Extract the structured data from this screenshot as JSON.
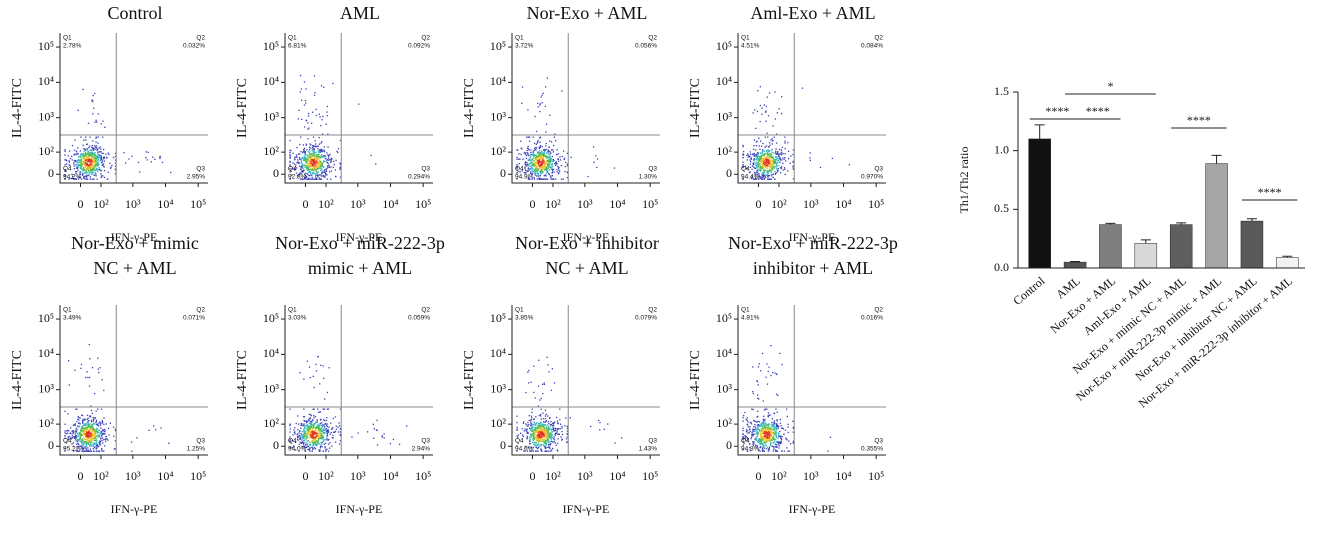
{
  "chart_data": [
    {
      "type": "flow",
      "title": [
        "Control"
      ],
      "xlabel": "IFN-γ-PE",
      "ylabel": "IL-4-FITC",
      "scale": "asinh",
      "xlim": [
        -100,
        200000
      ],
      "ylim": [
        -30,
        250000
      ],
      "xticks": [
        0,
        {
          "value": 100,
          "label": "10²"
        },
        {
          "value": 1000,
          "label": "10³"
        },
        {
          "value": 10000,
          "label": "10⁴"
        },
        {
          "value": 100000,
          "label": "10⁵"
        }
      ],
      "yticks": [
        0,
        {
          "value": 100,
          "label": "10²"
        },
        {
          "value": 1000,
          "label": "10³"
        },
        {
          "value": 10000,
          "label": "10⁴"
        },
        {
          "value": 100000,
          "label": "10⁵"
        }
      ],
      "quadrants": [
        "Q1",
        "Q2",
        "Q3",
        "Q4"
      ],
      "values": [
        2.78,
        0.032,
        2.95,
        94.2
      ],
      "value_labels": [
        "2.78%",
        "0.032%",
        "2.95%",
        "94.2%"
      ]
    },
    {
      "type": "flow",
      "title": [
        "AML"
      ],
      "xlabel": "IFN-γ-PE",
      "ylabel": "IL-4-FITC",
      "scale": "asinh",
      "xlim": [
        -100,
        200000
      ],
      "ylim": [
        -30,
        250000
      ],
      "xticks": [
        0,
        {
          "value": 100,
          "label": "10²"
        },
        {
          "value": 1000,
          "label": "10³"
        },
        {
          "value": 10000,
          "label": "10⁴"
        },
        {
          "value": 100000,
          "label": "10⁵"
        }
      ],
      "yticks": [
        0,
        {
          "value": 100,
          "label": "10²"
        },
        {
          "value": 1000,
          "label": "10³"
        },
        {
          "value": 10000,
          "label": "10⁴"
        },
        {
          "value": 100000,
          "label": "10⁵"
        }
      ],
      "quadrants": [
        "Q1",
        "Q2",
        "Q3",
        "Q4"
      ],
      "values": [
        6.81,
        0.092,
        0.294,
        92.8
      ],
      "value_labels": [
        "6.81%",
        "0.092%",
        "0.294%",
        "92.8%"
      ]
    },
    {
      "type": "flow",
      "title": [
        "Nor-Exo + AML"
      ],
      "xlabel": "IFN-γ-PE",
      "ylabel": "IL-4-FITC",
      "scale": "asinh",
      "xlim": [
        -100,
        200000
      ],
      "ylim": [
        -30,
        250000
      ],
      "xticks": [
        0,
        {
          "value": 100,
          "label": "10²"
        },
        {
          "value": 1000,
          "label": "10³"
        },
        {
          "value": 10000,
          "label": "10⁴"
        },
        {
          "value": 100000,
          "label": "10⁵"
        }
      ],
      "yticks": [
        0,
        {
          "value": 100,
          "label": "10²"
        },
        {
          "value": 1000,
          "label": "10³"
        },
        {
          "value": 10000,
          "label": "10⁴"
        },
        {
          "value": 100000,
          "label": "10⁵"
        }
      ],
      "quadrants": [
        "Q1",
        "Q2",
        "Q3",
        "Q4"
      ],
      "values": [
        3.72,
        0.056,
        1.3,
        94.9
      ],
      "value_labels": [
        "3.72%",
        "0.056%",
        "1.30%",
        "94.9%"
      ]
    },
    {
      "type": "flow",
      "title": [
        "Aml-Exo + AML"
      ],
      "xlabel": "IFN-γ-PE",
      "ylabel": "IL-4-FITC",
      "scale": "asinh",
      "xlim": [
        -100,
        200000
      ],
      "ylim": [
        -30,
        250000
      ],
      "xticks": [
        0,
        {
          "value": 100,
          "label": "10²"
        },
        {
          "value": 1000,
          "label": "10³"
        },
        {
          "value": 10000,
          "label": "10⁴"
        },
        {
          "value": 100000,
          "label": "10⁵"
        }
      ],
      "yticks": [
        0,
        {
          "value": 100,
          "label": "10²"
        },
        {
          "value": 1000,
          "label": "10³"
        },
        {
          "value": 10000,
          "label": "10⁴"
        },
        {
          "value": 100000,
          "label": "10⁵"
        }
      ],
      "quadrants": [
        "Q1",
        "Q2",
        "Q3",
        "Q4"
      ],
      "values": [
        4.51,
        0.084,
        0.97,
        94.4
      ],
      "value_labels": [
        "4.51%",
        "0.084%",
        "0.970%",
        "94.4%"
      ]
    },
    {
      "type": "flow",
      "title": [
        "Nor-Exo + mimic",
        "NC + AML"
      ],
      "xlabel": "IFN-γ-PE",
      "ylabel": "IL-4-FITC",
      "scale": "asinh",
      "xlim": [
        -100,
        200000
      ],
      "ylim": [
        -30,
        250000
      ],
      "xticks": [
        0,
        {
          "value": 100,
          "label": "10²"
        },
        {
          "value": 1000,
          "label": "10³"
        },
        {
          "value": 10000,
          "label": "10⁴"
        },
        {
          "value": 100000,
          "label": "10⁵"
        }
      ],
      "yticks": [
        0,
        {
          "value": 100,
          "label": "10²"
        },
        {
          "value": 1000,
          "label": "10³"
        },
        {
          "value": 10000,
          "label": "10⁴"
        },
        {
          "value": 100000,
          "label": "10⁵"
        }
      ],
      "quadrants": [
        "Q1",
        "Q2",
        "Q3",
        "Q4"
      ],
      "values": [
        3.49,
        0.071,
        1.25,
        95.2
      ],
      "value_labels": [
        "3.49%",
        "0.071%",
        "1.25%",
        "95.2%"
      ]
    },
    {
      "type": "flow",
      "title": [
        "Nor-Exo + miR-222-3p",
        "mimic + AML"
      ],
      "xlabel": "IFN-γ-PE",
      "ylabel": "IL-4-FITC",
      "scale": "asinh",
      "xlim": [
        -100,
        200000
      ],
      "ylim": [
        -30,
        250000
      ],
      "xticks": [
        0,
        {
          "value": 100,
          "label": "10²"
        },
        {
          "value": 1000,
          "label": "10³"
        },
        {
          "value": 10000,
          "label": "10⁴"
        },
        {
          "value": 100000,
          "label": "10⁵"
        }
      ],
      "yticks": [
        0,
        {
          "value": 100,
          "label": "10²"
        },
        {
          "value": 1000,
          "label": "10³"
        },
        {
          "value": 10000,
          "label": "10⁴"
        },
        {
          "value": 100000,
          "label": "10⁵"
        }
      ],
      "quadrants": [
        "Q1",
        "Q2",
        "Q3",
        "Q4"
      ],
      "values": [
        3.03,
        0.059,
        2.94,
        94.0
      ],
      "value_labels": [
        "3.03%",
        "0.059%",
        "2.94%",
        "94.0%"
      ]
    },
    {
      "type": "flow",
      "title": [
        "Nor-Exo + inhibitor",
        "NC + AML"
      ],
      "xlabel": "IFN-γ-PE",
      "ylabel": "IL-4-FITC",
      "scale": "asinh",
      "xlim": [
        -100,
        200000
      ],
      "ylim": [
        -30,
        250000
      ],
      "xticks": [
        0,
        {
          "value": 100,
          "label": "10²"
        },
        {
          "value": 1000,
          "label": "10³"
        },
        {
          "value": 10000,
          "label": "10⁴"
        },
        {
          "value": 100000,
          "label": "10⁵"
        }
      ],
      "yticks": [
        0,
        {
          "value": 100,
          "label": "10²"
        },
        {
          "value": 1000,
          "label": "10³"
        },
        {
          "value": 10000,
          "label": "10⁴"
        },
        {
          "value": 100000,
          "label": "10⁵"
        }
      ],
      "quadrants": [
        "Q1",
        "Q2",
        "Q3",
        "Q4"
      ],
      "values": [
        3.85,
        0.079,
        1.43,
        94.6
      ],
      "value_labels": [
        "3.85%",
        "0.079%",
        "1.43%",
        "94.6%"
      ]
    },
    {
      "type": "flow",
      "title": [
        "Nor-Exo + miR-222-3p",
        "inhibitor + AML"
      ],
      "xlabel": "IFN-γ-PE",
      "ylabel": "IL-4-FITC",
      "scale": "asinh",
      "xlim": [
        -100,
        200000
      ],
      "ylim": [
        -30,
        250000
      ],
      "xticks": [
        0,
        {
          "value": 100,
          "label": "10²"
        },
        {
          "value": 1000,
          "label": "10³"
        },
        {
          "value": 10000,
          "label": "10⁴"
        },
        {
          "value": 100000,
          "label": "10⁵"
        }
      ],
      "yticks": [
        0,
        {
          "value": 100,
          "label": "10²"
        },
        {
          "value": 1000,
          "label": "10³"
        },
        {
          "value": 10000,
          "label": "10⁴"
        },
        {
          "value": 100000,
          "label": "10⁵"
        }
      ],
      "quadrants": [
        "Q1",
        "Q2",
        "Q3",
        "Q4"
      ],
      "values": [
        4.81,
        0.016,
        0.355,
        94.8
      ],
      "value_labels": [
        "4.81%",
        "0.016%",
        "0.355%",
        "94.8%"
      ]
    },
    {
      "type": "bar",
      "ylabel": "Th1/Th2 ratio",
      "categories": [
        "Control",
        "AML",
        "Nor-Exo + AML",
        "Aml-Exo + AML",
        "Nor-Exo + mimic NC + AML",
        "Nor-Exo + miR-222-3p mimic + AML",
        "Nor-Exo + inhibitor NC + AML",
        "Nor-Exo + miR-222-3p inhibitor + AML"
      ],
      "values": [
        1.1,
        0.05,
        0.37,
        0.21,
        0.37,
        0.89,
        0.4,
        0.09
      ],
      "errors": [
        0.12,
        0.005,
        0.01,
        0.03,
        0.015,
        0.07,
        0.02,
        0.01
      ],
      "colors": [
        "#111111",
        "#555555",
        "#7f7f7f",
        "#d9d9d9",
        "#5f5f5f",
        "#a6a6a6",
        "#595959",
        "#f2f2f2"
      ],
      "ylim": [
        0,
        1.5
      ],
      "yticks": [
        {
          "value": 0,
          "label": "0.0"
        },
        0.5,
        {
          "value": 1,
          "label": "1.0"
        },
        1.5
      ],
      "annotations": [
        {
          "text": "****",
          "between": [
            "Control",
            "AML"
          ]
        },
        {
          "text": "****",
          "between": [
            "AML",
            "Nor-Exo + AML"
          ]
        },
        {
          "text": "*",
          "between": [
            "AML",
            "Aml-Exo + AML"
          ]
        },
        {
          "text": "****",
          "between": [
            "Nor-Exo + mimic NC + AML",
            "Nor-Exo + miR-222-3p mimic + AML"
          ]
        },
        {
          "text": "****",
          "between": [
            "Nor-Exo + inhibitor NC + AML",
            "Nor-Exo + miR-222-3p inhibitor + AML"
          ]
        }
      ]
    }
  ]
}
